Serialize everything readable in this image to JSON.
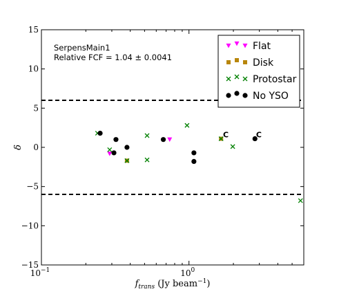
{
  "chart_data": {
    "type": "scatter",
    "xscale": "log",
    "xlim": [
      0.1,
      6.0
    ],
    "ylim": [
      -15,
      15
    ],
    "xlabel": "f_trans (Jy beam^-1)",
    "ylabel": "δ",
    "xticks": [
      {
        "value": 0.1,
        "base": "10",
        "exp": "−1"
      },
      {
        "value": 1.0,
        "base": "10",
        "exp": "0"
      }
    ],
    "yticks": [
      -15,
      -10,
      -5,
      0,
      5,
      10,
      15
    ],
    "ytick_labels": [
      "−15",
      "−10",
      "−5",
      "0",
      "5",
      "10",
      "15"
    ],
    "annotations": {
      "line1": "SerpensMain1",
      "line2": "Relative FCF = 1.04 ± 0.0041"
    },
    "threshold_lines": [
      6,
      -6
    ],
    "legend": {
      "placement": "top-right",
      "entries": [
        "Flat",
        "Disk",
        "Protostar",
        "No YSO"
      ]
    },
    "series": [
      {
        "name": "Flat",
        "marker": "triangle-down",
        "color": "#ff00ff",
        "points": [
          [
            0.29,
            -0.8
          ],
          [
            0.74,
            1.0
          ]
        ]
      },
      {
        "name": "Disk",
        "marker": "square",
        "color": "#b8860b",
        "points": [
          [
            0.38,
            -1.7
          ],
          [
            1.65,
            1.1
          ]
        ]
      },
      {
        "name": "Protostar",
        "marker": "x",
        "color": "#008000",
        "points": [
          [
            0.24,
            1.8
          ],
          [
            0.29,
            -0.3
          ],
          [
            0.38,
            -1.7
          ],
          [
            0.52,
            1.5
          ],
          [
            0.52,
            -1.6
          ],
          [
            0.97,
            2.8
          ],
          [
            1.65,
            1.1
          ],
          [
            1.98,
            0.1
          ],
          [
            5.7,
            -6.8
          ]
        ]
      },
      {
        "name": "No YSO",
        "marker": "circle",
        "color": "#000000",
        "points": [
          [
            0.25,
            1.8
          ],
          [
            0.32,
            1.0
          ],
          [
            0.31,
            -0.7
          ],
          [
            0.38,
            0.0
          ],
          [
            0.67,
            1.0
          ],
          [
            1.08,
            -0.7
          ],
          [
            1.08,
            -1.8
          ],
          [
            2.8,
            1.1
          ]
        ]
      }
    ],
    "flags": [
      {
        "x": 1.7,
        "y": 1.1,
        "text": "C"
      },
      {
        "x": 2.85,
        "y": 1.1,
        "text": "C"
      }
    ]
  }
}
